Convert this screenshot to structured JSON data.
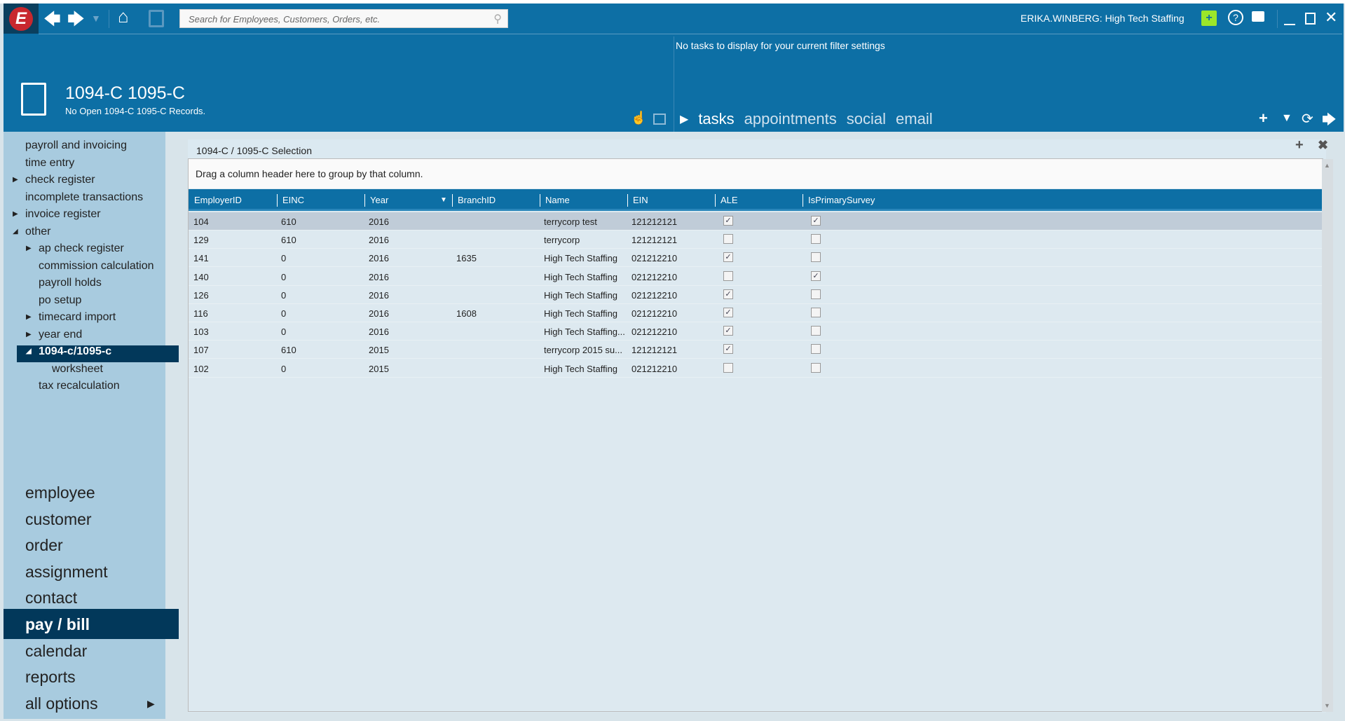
{
  "topbar": {
    "search_placeholder": "Search for Employees, Customers, Orders, etc.",
    "user": "ERIKA.WINBERG: High Tech Staffing"
  },
  "tasks": {
    "empty_message": "No tasks to display for your current filter settings",
    "tabs": [
      "tasks",
      "appointments",
      "social",
      "email"
    ]
  },
  "record": {
    "title": "1094-C 1095-C",
    "subtitle": "No Open 1094-C 1095-C Records."
  },
  "sidebar": {
    "items": [
      {
        "label": "payroll and invoicing",
        "level": 0,
        "arrow": ""
      },
      {
        "label": "time entry",
        "level": 0,
        "arrow": ""
      },
      {
        "label": "check register",
        "level": 0,
        "arrow": "▶"
      },
      {
        "label": "incomplete transactions",
        "level": 0,
        "arrow": ""
      },
      {
        "label": "invoice register",
        "level": 0,
        "arrow": "▶"
      },
      {
        "label": "other",
        "level": 0,
        "arrow": "◢"
      },
      {
        "label": "ap check register",
        "level": 1,
        "arrow": "▶"
      },
      {
        "label": "commission calculation",
        "level": 1,
        "arrow": ""
      },
      {
        "label": "payroll holds",
        "level": 1,
        "arrow": ""
      },
      {
        "label": "po setup",
        "level": 1,
        "arrow": ""
      },
      {
        "label": "timecard import",
        "level": 1,
        "arrow": "▶"
      },
      {
        "label": "year end",
        "level": 1,
        "arrow": "▶"
      },
      {
        "label": "1094-c/1095-c",
        "level": 1,
        "arrow": "◢",
        "selected": true
      },
      {
        "label": "worksheet",
        "level": 2,
        "arrow": ""
      },
      {
        "label": "tax recalculation",
        "level": 1,
        "arrow": ""
      }
    ]
  },
  "mainnav": {
    "items": [
      "employee",
      "customer",
      "order",
      "assignment",
      "contact",
      "pay / bill",
      "calendar",
      "reports",
      "all options"
    ],
    "selected": "pay / bill"
  },
  "panel": {
    "title": "1094-C / 1095-C Selection",
    "group_hint": "Drag a column header here to group by that column."
  },
  "grid": {
    "columns": [
      "EmployerID",
      "EINC",
      "Year",
      "BranchID",
      "Name",
      "EIN",
      "ALE",
      "IsPrimarySurvey"
    ],
    "rows": [
      [
        "104",
        "610",
        "2016",
        "",
        "terrycorp test",
        "121212121",
        true,
        true
      ],
      [
        "129",
        "610",
        "2016",
        "",
        "terrycorp",
        "121212121",
        false,
        false
      ],
      [
        "141",
        "0",
        "2016",
        "1635",
        "High Tech Staffing",
        "021212210",
        true,
        false
      ],
      [
        "140",
        "0",
        "2016",
        "",
        "High Tech Staffing",
        "021212210",
        false,
        true
      ],
      [
        "126",
        "0",
        "2016",
        "",
        "High Tech Staffing",
        "021212210",
        true,
        false
      ],
      [
        "116",
        "0",
        "2016",
        "1608",
        "High Tech Staffing",
        "021212210",
        true,
        false
      ],
      [
        "103",
        "0",
        "2016",
        "",
        "High Tech Staffing...",
        "021212210",
        true,
        false
      ],
      [
        "107",
        "610",
        "2015",
        "",
        "terrycorp 2015 su...",
        "121212121",
        true,
        false
      ],
      [
        "102",
        "0",
        "2015",
        "",
        "High Tech Staffing",
        "021212210",
        false,
        false
      ]
    ]
  },
  "colors": {
    "header_blue": "#0d6fa5",
    "selected_nav": "#02385a",
    "sidebar": "#a8cbdf"
  }
}
